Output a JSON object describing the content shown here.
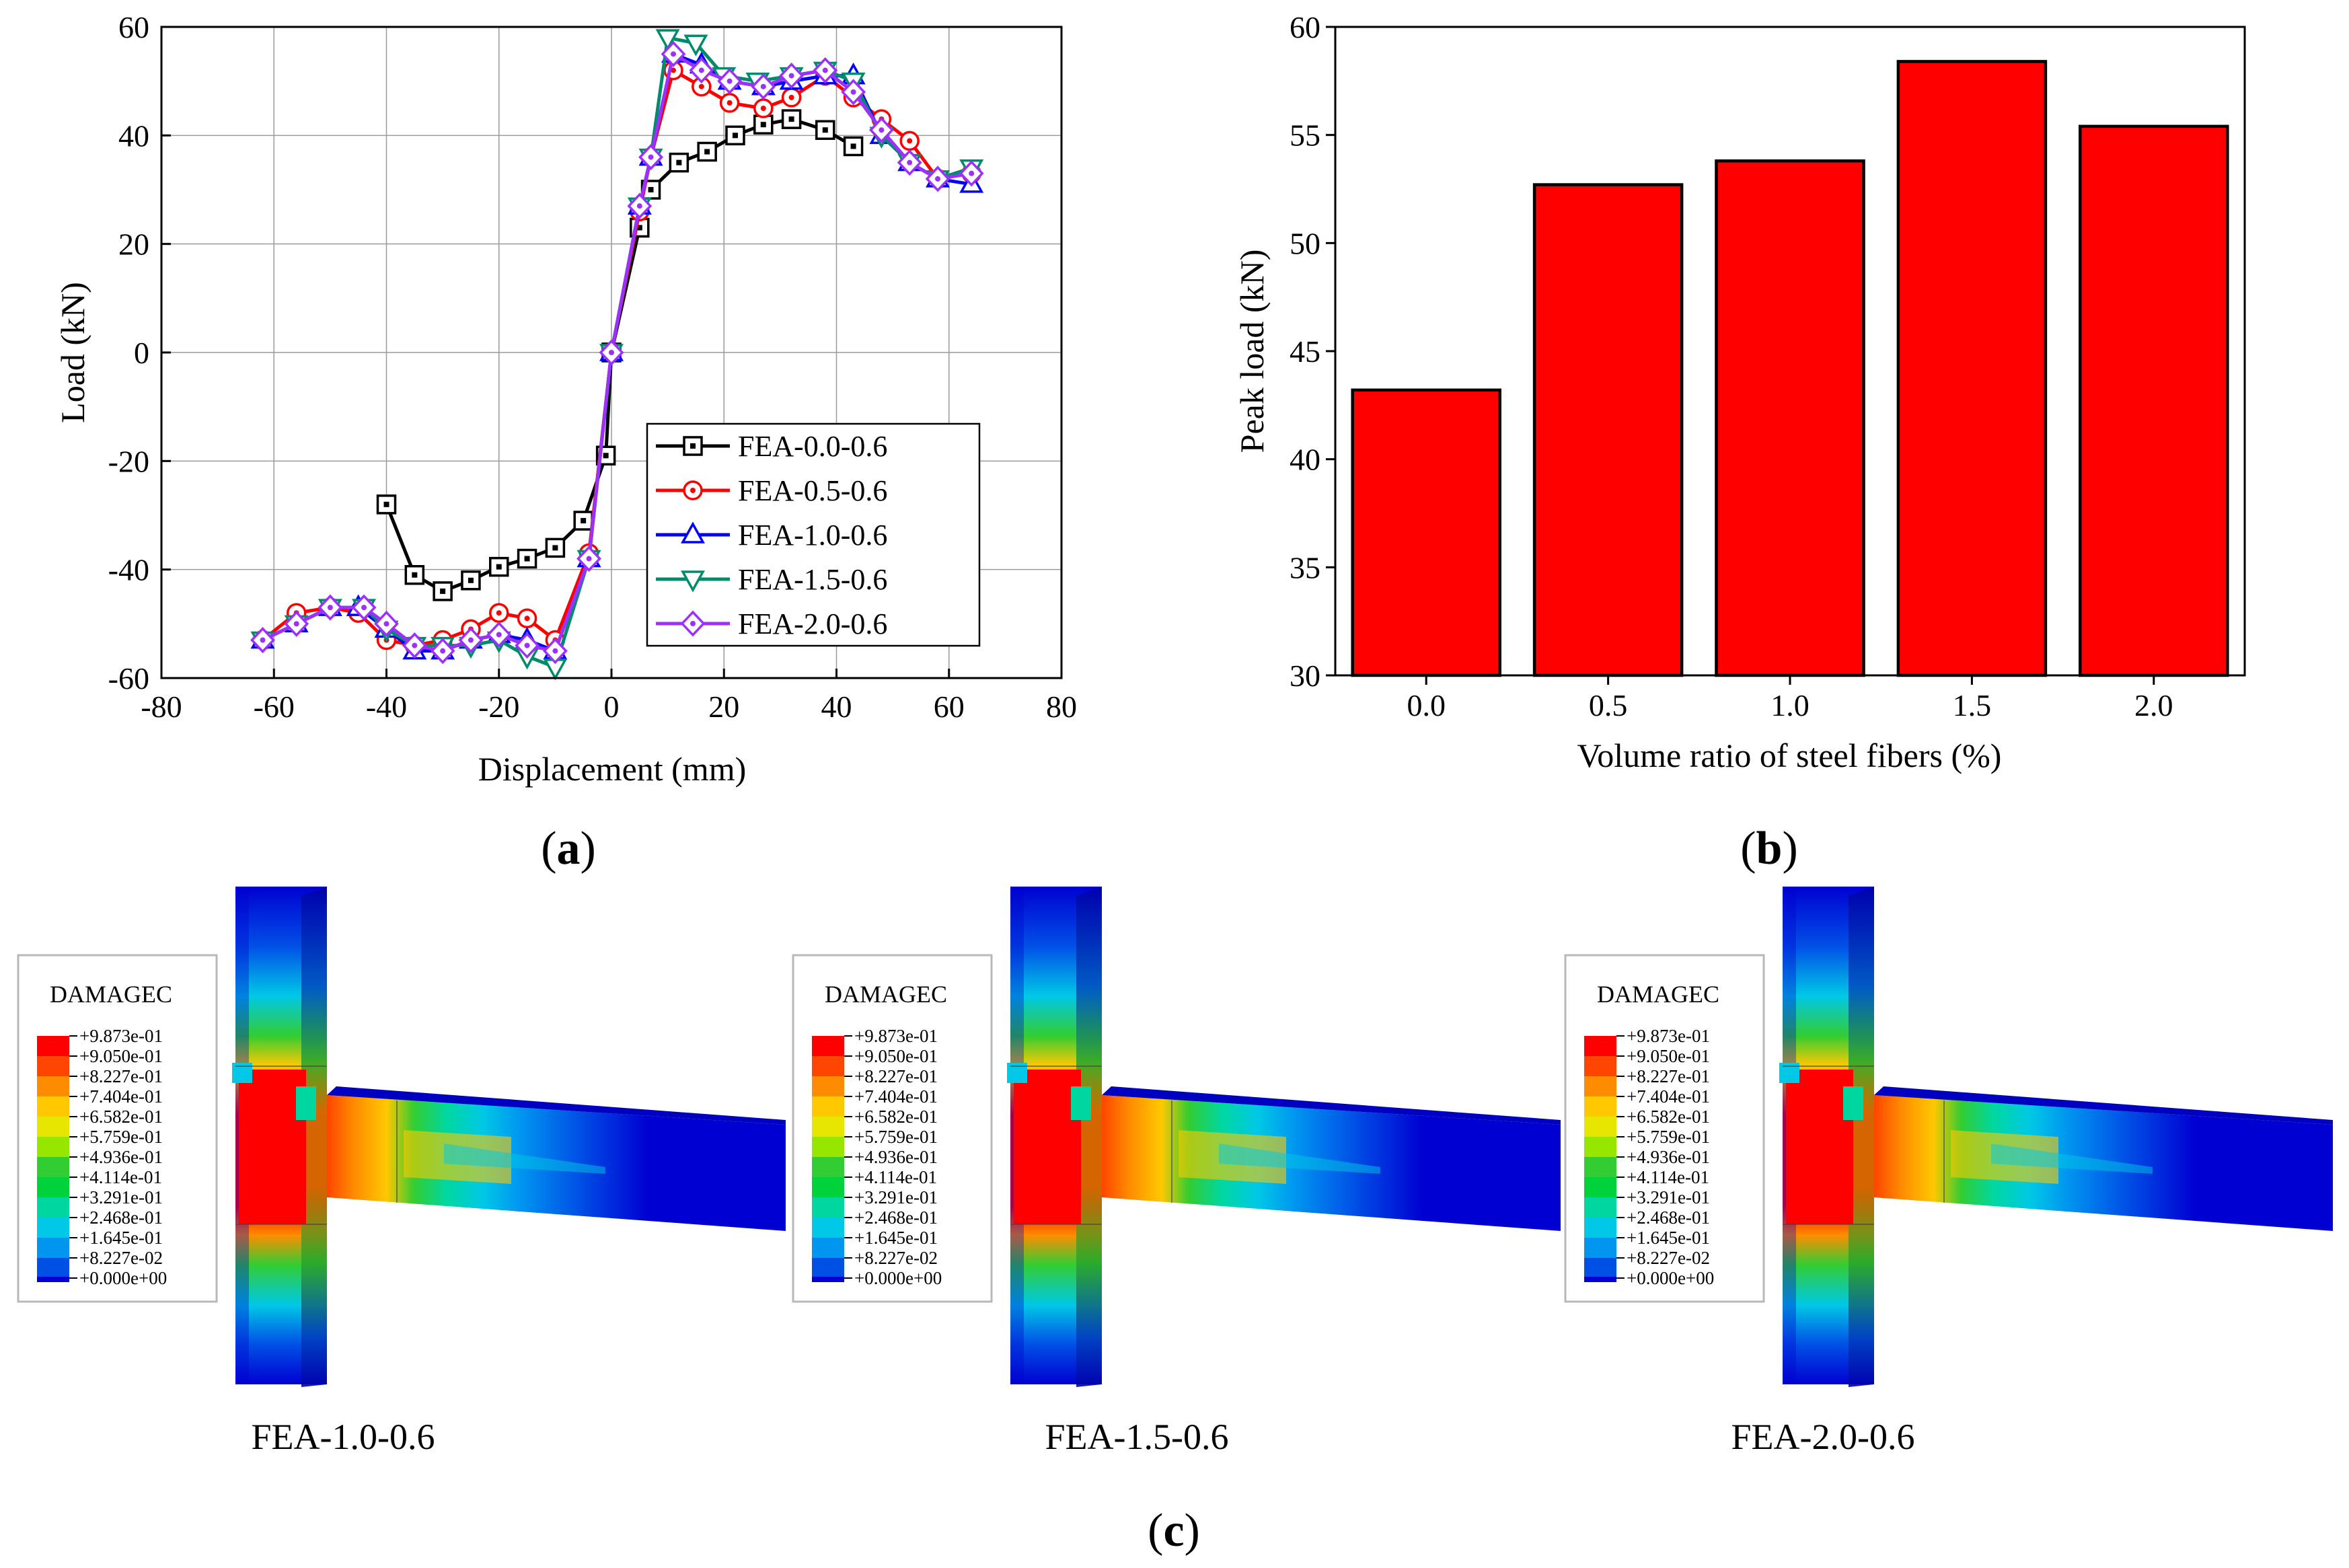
{
  "panels": {
    "a": {
      "letter": "a"
    },
    "b": {
      "letter": "b"
    },
    "c": {
      "letter": "c"
    }
  },
  "chart_data": [
    {
      "type": "line",
      "xlabel": "Displacement  (mm)",
      "ylabel": "Load  (kN)",
      "xlim": [
        -80,
        80
      ],
      "ylim": [
        -60,
        60
      ],
      "xticks": [
        -80,
        -60,
        -40,
        -20,
        0,
        20,
        40,
        60,
        80
      ],
      "yticks": [
        -60,
        -40,
        -20,
        0,
        20,
        40,
        60
      ],
      "grid": true,
      "legend_position": "bottom-right",
      "series": [
        {
          "name": "FEA-0.0-0.6",
          "color": "#000000",
          "marker": "square",
          "x": [
            -40,
            -35,
            -30,
            -25,
            -20,
            -15,
            -10,
            -5,
            -1,
            0,
            5,
            7,
            12,
            17,
            22,
            27,
            32,
            38,
            43
          ],
          "y": [
            -28,
            -41,
            -44,
            -42,
            -39.5,
            -38,
            -36,
            -31,
            -19,
            0,
            23,
            30,
            35,
            37,
            40,
            42,
            43,
            41,
            38
          ]
        },
        {
          "name": "FEA-0.5-0.6",
          "color": "#ff0000",
          "marker": "circle",
          "x": [
            -62,
            -56,
            -50,
            -45,
            -40,
            -35,
            -30,
            -25,
            -20,
            -15,
            -10,
            -4,
            0,
            5,
            7,
            11,
            16,
            21,
            27,
            32,
            38,
            43,
            48,
            53,
            58,
            64
          ],
          "y": [
            -53,
            -48,
            -47,
            -48,
            -53,
            -54,
            -53,
            -51,
            -48,
            -49,
            -53,
            -37,
            0,
            26,
            36,
            52,
            49,
            46,
            45,
            47,
            51,
            47,
            43,
            39,
            32,
            33
          ]
        },
        {
          "name": "FEA-1.0-0.6",
          "color": "#0000ff",
          "marker": "triangle-up",
          "x": [
            -62,
            -56,
            -50,
            -45,
            -40,
            -35,
            -30,
            -25,
            -20,
            -15,
            -10,
            -4,
            0,
            5,
            7,
            11,
            16,
            21,
            27,
            32,
            38,
            43,
            48,
            53,
            58,
            64
          ],
          "y": [
            -53,
            -50,
            -47,
            -47,
            -51,
            -55,
            -55,
            -53,
            -52,
            -53,
            -55,
            -38,
            0,
            27,
            36,
            55,
            53,
            50,
            49,
            50,
            51,
            51,
            40,
            35,
            32,
            31
          ]
        },
        {
          "name": "FEA-1.5-0.6",
          "color": "#008b6b",
          "marker": "triangle-down",
          "x": [
            -62,
            -56,
            -50,
            -44,
            -40,
            -35,
            -30,
            -25,
            -20,
            -15,
            -10,
            -4,
            0,
            5,
            7,
            10,
            15,
            20,
            26,
            32,
            38,
            43,
            48,
            53,
            58,
            64
          ],
          "y": [
            -53,
            -50,
            -47,
            -47,
            -51,
            -54,
            -54,
            -54,
            -53,
            -56,
            -58,
            -38,
            0,
            27,
            36,
            58,
            57,
            51,
            50,
            51,
            52,
            50,
            40,
            35,
            32,
            34
          ]
        },
        {
          "name": "FEA-2.0-0.6",
          "color": "#9b30ff",
          "marker": "diamond",
          "x": [
            -62,
            -56,
            -50,
            -44,
            -40,
            -35,
            -30,
            -25,
            -20,
            -15,
            -10,
            -4,
            0,
            5,
            7,
            11,
            16,
            21,
            27,
            32,
            38,
            43,
            48,
            53,
            58,
            64
          ],
          "y": [
            -53,
            -50,
            -47,
            -47,
            -50,
            -54,
            -55,
            -53,
            -52,
            -54,
            -55,
            -38,
            0,
            27,
            36,
            55,
            52,
            50,
            49,
            51,
            52,
            48,
            41,
            35,
            32,
            33
          ]
        }
      ]
    },
    {
      "type": "bar",
      "xlabel": "Volume ratio of steel fibers (%)",
      "ylabel": "Peak load (kN)",
      "categories": [
        "0.0",
        "0.5",
        "1.0",
        "1.5",
        "2.0"
      ],
      "values": [
        43.2,
        52.7,
        53.8,
        58.4,
        55.4
      ],
      "ylim": [
        30,
        60
      ],
      "yticks": [
        30,
        35,
        40,
        45,
        50,
        55,
        60
      ],
      "bar_color": "#ff0000"
    }
  ],
  "contours": {
    "legend_title": "DAMAGEC",
    "levels": [
      "+9.873e-01",
      "+9.050e-01",
      "+8.227e-01",
      "+7.404e-01",
      "+6.582e-01",
      "+5.759e-01",
      "+4.936e-01",
      "+4.114e-01",
      "+3.291e-01",
      "+2.468e-01",
      "+1.645e-01",
      "+8.227e-02",
      "+0.000e+00"
    ],
    "colors": [
      "#ff0000",
      "#ff4500",
      "#ff8c00",
      "#ffc800",
      "#e6e600",
      "#96e600",
      "#32cd32",
      "#00d23c",
      "#00d7a0",
      "#00c8e6",
      "#0096f0",
      "#0050e6",
      "#0000d2"
    ],
    "models": [
      {
        "caption": "FEA-1.0-0.6"
      },
      {
        "caption": "FEA-1.5-0.6"
      },
      {
        "caption": "FEA-2.0-0.6"
      }
    ]
  }
}
